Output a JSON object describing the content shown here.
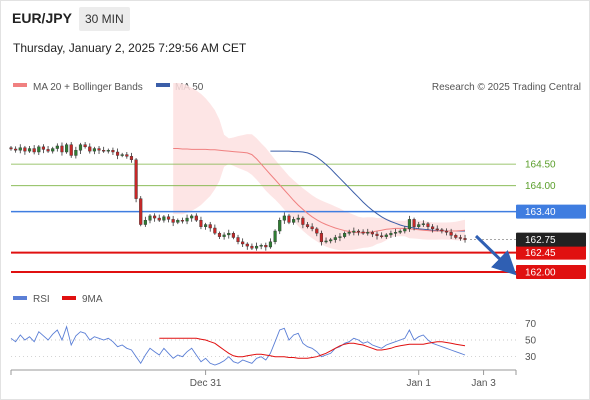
{
  "header": {
    "symbol": "EUR/JPY",
    "timeframe": "30 MIN",
    "datetime": "Thursday, January 2, 2025 7:29:56 AM CET"
  },
  "legend": {
    "ma20": "MA 20 + Bollinger Bands",
    "ma50": "MA 50",
    "research": "Research © 2025 Trading Central",
    "ma20_color": "#f08080",
    "ma50_color": "#3b5ea8"
  },
  "indicator_legend": {
    "rsi": "RSI",
    "ma9": "9MA",
    "rsi_color": "#5b7fd6",
    "ma9_color": "#e01010"
  },
  "levels": [
    {
      "value": 164.5,
      "label": "164.50",
      "kind": "target",
      "color": "#7cb342"
    },
    {
      "value": 164.0,
      "label": "164.00",
      "kind": "target",
      "color": "#7cb342"
    },
    {
      "value": 163.4,
      "label": "163.40",
      "kind": "pivot",
      "color": "#3f7de0"
    },
    {
      "value": 162.45,
      "label": "162.45",
      "kind": "support",
      "color": "#e01010"
    },
    {
      "value": 162.0,
      "label": "162.00",
      "kind": "support",
      "color": "#e01010"
    }
  ],
  "last_price": {
    "value": 162.75,
    "label": "162.75"
  },
  "chart_data": {
    "type": "candlestick",
    "price_range": [
      161.7,
      166.1
    ],
    "x_ticks": [
      {
        "label": "Dec 31",
        "index": 42
      },
      {
        "label": "Jan 1",
        "index": 88
      },
      {
        "label": "Jan 3",
        "index": 102
      }
    ],
    "x_count": 110,
    "candles_close": [
      164.85,
      164.82,
      164.88,
      164.8,
      164.86,
      164.78,
      164.9,
      164.84,
      164.8,
      164.86,
      164.92,
      164.78,
      164.95,
      164.7,
      164.82,
      164.95,
      164.9,
      164.8,
      164.86,
      164.82,
      164.8,
      164.82,
      164.78,
      164.7,
      164.72,
      164.68,
      164.6,
      163.7,
      163.1,
      163.2,
      163.3,
      163.25,
      163.2,
      163.28,
      163.22,
      163.15,
      163.2,
      163.18,
      163.25,
      163.3,
      163.2,
      163.05,
      163.1,
      163.02,
      162.9,
      162.82,
      162.86,
      162.9,
      162.8,
      162.7,
      162.65,
      162.6,
      162.55,
      162.6,
      162.62,
      162.58,
      162.7,
      162.95,
      163.2,
      163.3,
      163.15,
      163.22,
      163.25,
      163.1,
      163.05,
      163.0,
      162.9,
      162.7,
      162.72,
      162.75,
      162.8,
      162.82,
      162.9,
      162.92,
      162.95,
      162.93,
      162.9,
      162.92,
      162.88,
      162.84,
      162.82,
      162.86,
      162.9,
      162.92,
      162.95,
      163.0,
      163.22,
      163.05,
      163.1,
      163.12,
      163.05,
      163.0,
      162.98,
      162.95,
      162.92,
      162.85,
      162.8,
      162.78,
      162.75
    ],
    "ma20": [
      164.86,
      164.86,
      164.85,
      164.85,
      164.84,
      164.84,
      164.84,
      164.84,
      164.83,
      164.83,
      164.82,
      164.81,
      164.8,
      164.79,
      164.78,
      164.77,
      164.76,
      164.72,
      164.62,
      164.5,
      164.38,
      164.26,
      164.14,
      164.02,
      163.9,
      163.78,
      163.66,
      163.55,
      163.45,
      163.36,
      163.28,
      163.21,
      163.15,
      163.1,
      163.06,
      163.02,
      162.99,
      162.96,
      162.94,
      162.92,
      162.91,
      162.91,
      162.92,
      162.93,
      162.95,
      162.97,
      162.99,
      163.0,
      163.01,
      163.01,
      163.01,
      163.0,
      162.99,
      162.98,
      162.97,
      162.96,
      162.95,
      162.95,
      162.95,
      162.95,
      162.95,
      162.95,
      162.96,
      162.97
    ],
    "ma50": [
      164.8,
      164.8,
      164.8,
      164.8,
      164.8,
      164.79,
      164.79,
      164.78,
      164.76,
      164.72,
      164.66,
      164.58,
      164.49,
      164.39,
      164.28,
      164.17,
      164.06,
      163.95,
      163.84,
      163.73,
      163.62,
      163.52,
      163.43,
      163.35,
      163.28,
      163.22,
      163.17,
      163.13,
      163.09,
      163.06,
      163.04,
      163.02,
      163.0,
      162.99,
      162.98,
      162.97,
      162.96,
      162.96,
      162.95,
      162.95,
      162.95,
      162.95,
      162.95
    ],
    "rsi_range": [
      20,
      80
    ],
    "rsi_ticks": [
      70,
      50,
      30
    ],
    "rsi": [
      52,
      48,
      56,
      50,
      54,
      48,
      60,
      55,
      50,
      57,
      62,
      50,
      66,
      44,
      55,
      60,
      58,
      50,
      54,
      52,
      50,
      52,
      48,
      42,
      44,
      40,
      38,
      30,
      22,
      32,
      40,
      36,
      32,
      40,
      34,
      28,
      32,
      30,
      36,
      40,
      32,
      24,
      28,
      22,
      20,
      22,
      25,
      30,
      24,
      22,
      26,
      24,
      22,
      28,
      30,
      26,
      34,
      48,
      62,
      64,
      50,
      56,
      58,
      46,
      42,
      40,
      36,
      30,
      32,
      34,
      40,
      42,
      46,
      48,
      52,
      50,
      46,
      48,
      44,
      42,
      40,
      44,
      46,
      48,
      50,
      52,
      62,
      50,
      54,
      56,
      50,
      46,
      44,
      42,
      40,
      38,
      36,
      34,
      32
    ],
    "ma9": [
      52,
      52,
      52,
      52,
      52,
      52,
      52,
      52,
      52,
      51,
      50,
      48,
      46,
      42,
      38,
      34,
      31,
      30,
      30,
      31,
      32,
      33,
      33,
      32,
      31,
      30,
      30,
      30,
      29,
      29,
      28,
      28,
      28,
      29,
      30,
      32,
      34,
      37,
      40,
      43,
      45,
      46,
      46,
      45,
      44,
      42,
      40,
      38,
      38,
      39,
      40,
      42,
      43,
      44,
      45,
      45,
      45,
      45,
      46,
      47,
      48,
      48,
      47,
      46,
      45,
      44,
      43
    ]
  }
}
